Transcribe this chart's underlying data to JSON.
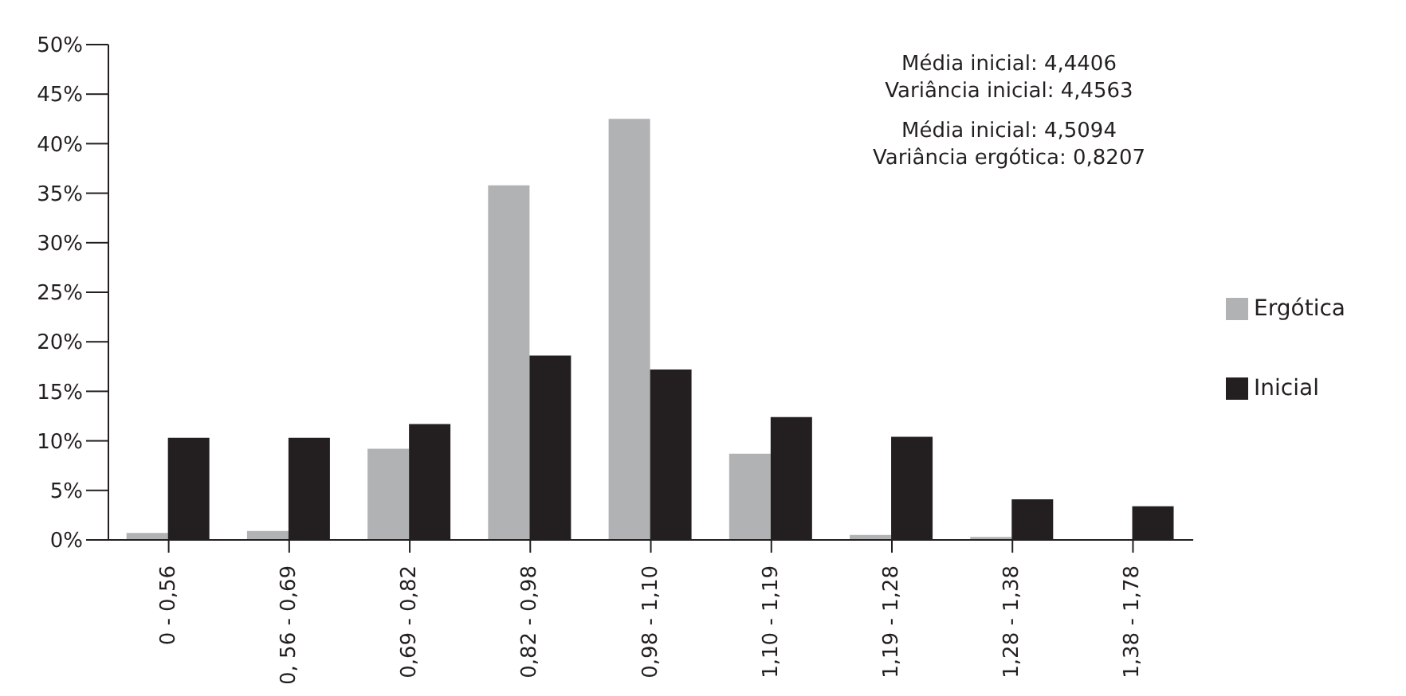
{
  "chart_data": {
    "type": "bar",
    "categories": [
      "0 - 0,56",
      "0, 56 - 0,69",
      "0,69 - 0,82",
      "0,82 - 0,98",
      "0,98 - 1,10",
      "1,10 - 1,19",
      "1,19 - 1,28",
      "1,28 - 1,38",
      "1,38 - 1,78"
    ],
    "series": [
      {
        "name": "Ergótica",
        "color": "#b1b2b4",
        "values": [
          0.7,
          0.9,
          9.2,
          35.8,
          42.5,
          8.7,
          0.5,
          0.3,
          0
        ]
      },
      {
        "name": "Inicial",
        "color": "#231f20",
        "values": [
          10.3,
          10.3,
          11.7,
          18.6,
          17.2,
          12.4,
          10.4,
          4.1,
          3.4
        ]
      }
    ],
    "ylim": [
      0,
      50
    ],
    "yticks": [
      {
        "value": 0,
        "label": "0%"
      },
      {
        "value": 5,
        "label": "5%"
      },
      {
        "value": 10,
        "label": "10%"
      },
      {
        "value": 15,
        "label": "15%"
      },
      {
        "value": 20,
        "label": "20%"
      },
      {
        "value": 25,
        "label": "25%"
      },
      {
        "value": 30,
        "label": "30%"
      },
      {
        "value": 35,
        "label": "35%"
      },
      {
        "value": 40,
        "label": "40%"
      },
      {
        "value": 45,
        "label": "45%"
      },
      {
        "value": 50,
        "label": "50%"
      }
    ],
    "grid": false,
    "legend": "right",
    "annotations": [
      "Média inicial: 4,4406",
      "Variância inicial: 4,4563",
      "Média inicial: 4,5094",
      "Variância ergótica: 0,8207"
    ]
  }
}
